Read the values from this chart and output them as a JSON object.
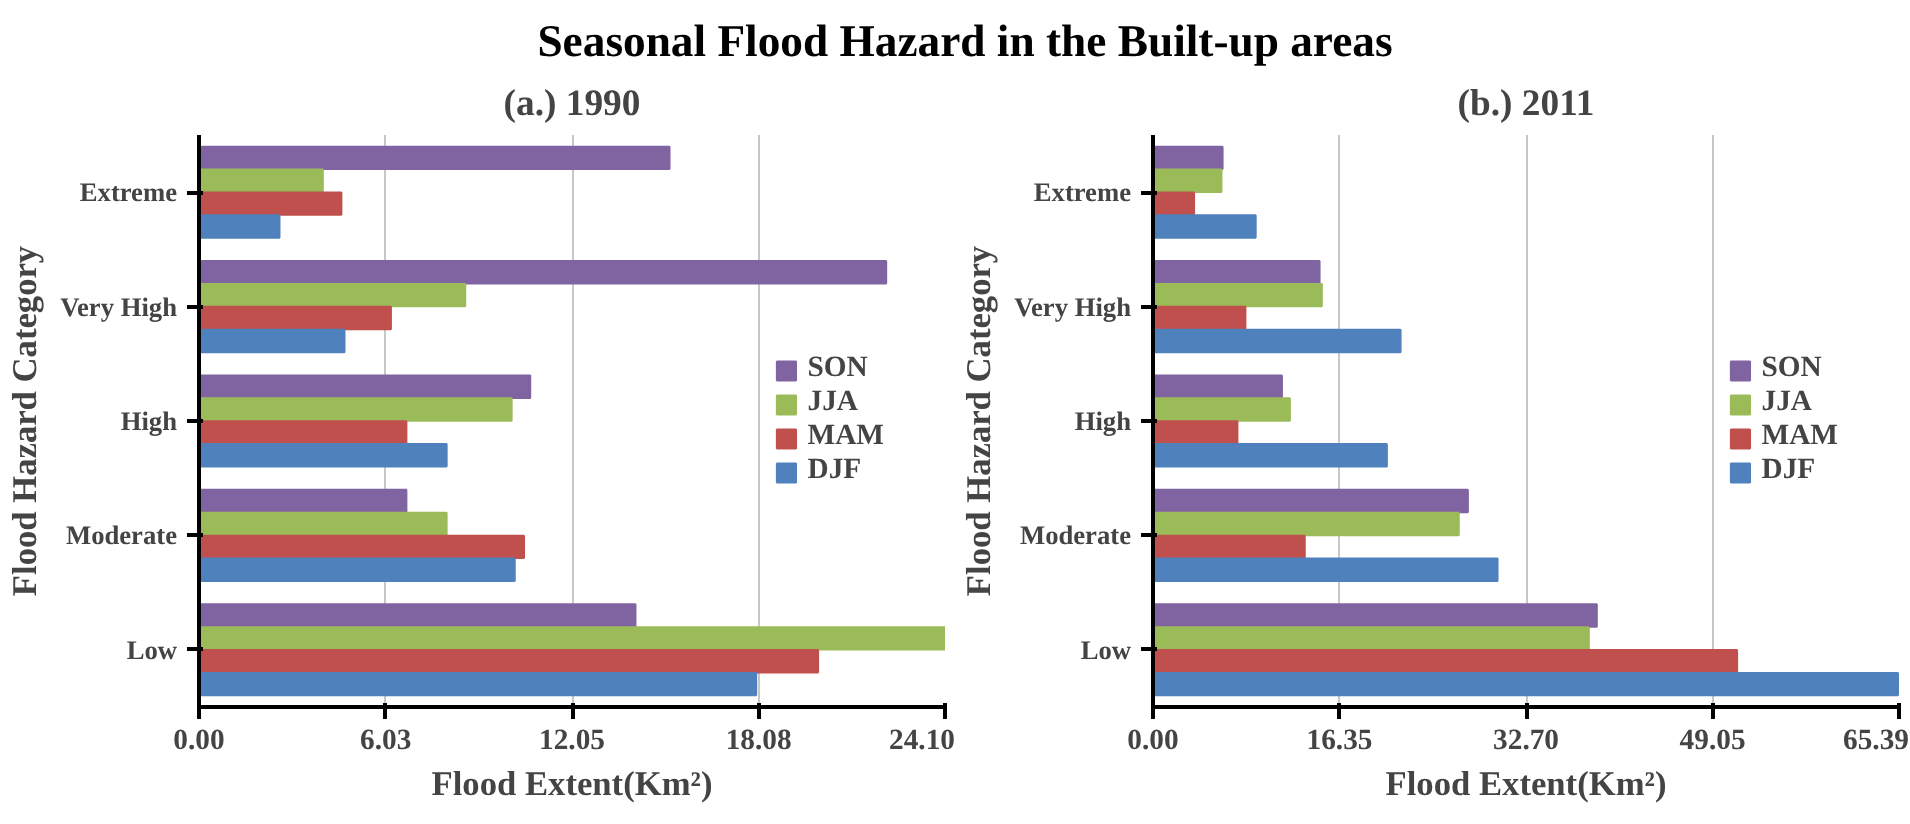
{
  "chart_data": [
    {
      "type": "bar",
      "orientation": "horizontal",
      "title": "Seasonal Flood Hazard in the Built-up areas",
      "subtitle": "(a.) 1990",
      "xlabel": "Flood Extent(Km²)",
      "ylabel": "Flood Hazard Category",
      "categories": [
        "Extreme",
        "Very High",
        "High",
        "Moderate",
        "Low"
      ],
      "series": [
        {
          "name": "SON",
          "color": "#8064a2",
          "values": [
            15.2,
            22.2,
            10.7,
            6.7,
            14.1
          ]
        },
        {
          "name": "JJA",
          "color": "#9bbb59",
          "values": [
            4.0,
            8.6,
            10.1,
            8.0,
            24.1
          ]
        },
        {
          "name": "MAM",
          "color": "#c0504d",
          "values": [
            4.6,
            6.2,
            6.7,
            10.5,
            20.0
          ]
        },
        {
          "name": "DJF",
          "color": "#4f81bd",
          "values": [
            2.6,
            4.7,
            8.0,
            10.2,
            18.0
          ]
        }
      ],
      "xlim": [
        0,
        24.1
      ],
      "xticks": [
        {
          "value": 0,
          "label": "0.00"
        },
        6.03,
        12.05,
        18.08,
        {
          "value": 24.1,
          "label": "24.10"
        }
      ],
      "grid": "x",
      "legend": "right"
    },
    {
      "type": "bar",
      "orientation": "horizontal",
      "subtitle": "(b.) 2011",
      "xlabel": "Flood Extent(Km²)",
      "ylabel": "Flood Hazard Category",
      "categories": [
        "Extreme",
        "Very High",
        "High",
        "Moderate",
        "Low"
      ],
      "series": [
        {
          "name": "SON",
          "color": "#8064a2",
          "values": [
            6.1,
            14.6,
            11.3,
            27.6,
            38.9
          ]
        },
        {
          "name": "JJA",
          "color": "#9bbb59",
          "values": [
            6.0,
            14.8,
            12.0,
            26.8,
            38.2
          ]
        },
        {
          "name": "MAM",
          "color": "#c0504d",
          "values": [
            3.6,
            8.1,
            7.4,
            13.3,
            51.2
          ]
        },
        {
          "name": "DJF",
          "color": "#4f81bd",
          "values": [
            9.0,
            21.7,
            20.5,
            30.2,
            65.3
          ]
        }
      ],
      "xlim": [
        0,
        65.39
      ],
      "xticks": [
        {
          "value": 0,
          "label": "0.00"
        },
        16.35,
        {
          "value": 32.7,
          "label": "32.70"
        },
        49.05,
        65.39
      ],
      "grid": "x",
      "legend": "right"
    }
  ]
}
